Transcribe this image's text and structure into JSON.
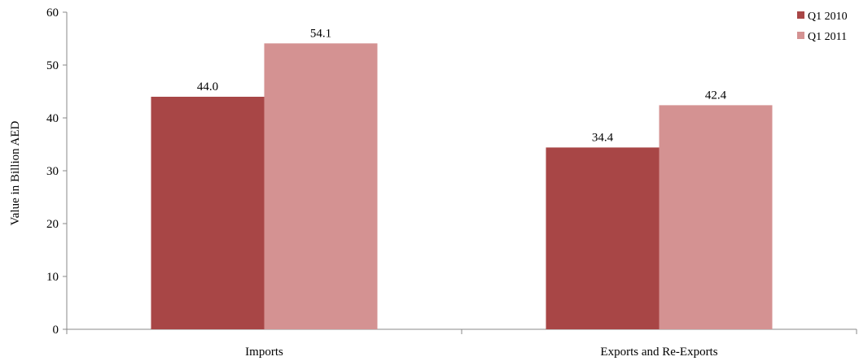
{
  "chart_data": {
    "type": "bar",
    "title": "",
    "xlabel": "",
    "ylabel": "Value in Billion AED",
    "ylim": [
      0,
      60
    ],
    "yticks": [
      0,
      10,
      20,
      30,
      40,
      50,
      60
    ],
    "grid": false,
    "legend_position": "top-right",
    "categories": [
      "Imports",
      "Exports and Re-Exports"
    ],
    "series": [
      {
        "name": "Q1 2010",
        "values": [
          44.0,
          34.4
        ],
        "labels": [
          "44.0",
          "34.4"
        ],
        "color": "#a84646"
      },
      {
        "name": "Q1 2011",
        "values": [
          54.1,
          42.4
        ],
        "labels": [
          "54.1",
          "42.4"
        ],
        "color": "#d49292"
      }
    ]
  }
}
